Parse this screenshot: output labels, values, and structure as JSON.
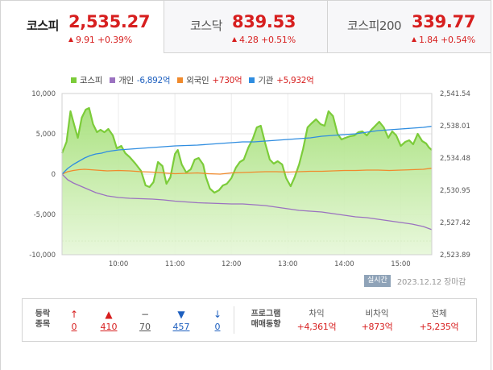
{
  "tabs": [
    {
      "name": "코스피",
      "value": "2,535.27",
      "change": "9.91 +0.39%"
    },
    {
      "name": "코스닥",
      "value": "839.53",
      "change": "4.28 +0.51%"
    },
    {
      "name": "코스피200",
      "value": "339.77",
      "change": "1.84 +0.54%"
    }
  ],
  "legend": [
    {
      "name": "코스피",
      "value": "",
      "color": "#7ccc3a",
      "value_color": "#444"
    },
    {
      "name": "개인",
      "value": "-6,892억",
      "color": "#9b72c0",
      "value_color": "#1d5fbf"
    },
    {
      "name": "외국인",
      "value": "+730억",
      "color": "#f08a2c",
      "value_color": "#d71f1f"
    },
    {
      "name": "기관",
      "value": "+5,932억",
      "color": "#2f8de0",
      "value_color": "#d71f1f"
    }
  ],
  "chart_data": {
    "type": "line",
    "x_ticks": [
      "10:00",
      "11:00",
      "12:00",
      "13:00",
      "14:00",
      "15:00"
    ],
    "y_left_ticks": [
      "10,000",
      "5,000",
      "0",
      "-5,000",
      "-10,000"
    ],
    "y_right_ticks": [
      "2,541.54",
      "2,538.01",
      "2,534.48",
      "2,530.95",
      "2,527.42",
      "2,523.89"
    ],
    "y_left_range": [
      -10000,
      10000
    ],
    "y_right_range": [
      2523.89,
      2541.54
    ],
    "grid": true,
    "x_range": [
      9.0,
      15.55
    ],
    "reference_line": -8300,
    "series": [
      {
        "name": "코스피",
        "axis": "left",
        "type": "area",
        "color": "#7ccc3a",
        "x": [
          9.0,
          9.08,
          9.15,
          9.22,
          9.28,
          9.35,
          9.42,
          9.48,
          9.55,
          9.62,
          9.68,
          9.75,
          9.82,
          9.9,
          9.97,
          10.05,
          10.12,
          10.2,
          10.3,
          10.4,
          10.48,
          10.55,
          10.62,
          10.7,
          10.78,
          10.85,
          10.92,
          11.0,
          11.05,
          11.12,
          11.2,
          11.28,
          11.35,
          11.42,
          11.5,
          11.55,
          11.62,
          11.7,
          11.78,
          11.85,
          11.92,
          12.0,
          12.08,
          12.15,
          12.22,
          12.3,
          12.38,
          12.45,
          12.52,
          12.6,
          12.68,
          12.75,
          12.82,
          12.9,
          12.97,
          13.05,
          13.12,
          13.2,
          13.27,
          13.35,
          13.42,
          13.5,
          13.58,
          13.65,
          13.72,
          13.8,
          13.88,
          13.95,
          14.02,
          14.1,
          14.18,
          14.25,
          14.32,
          14.4,
          14.48,
          14.55,
          14.62,
          14.7,
          14.78,
          14.85,
          14.92,
          15.0,
          15.08,
          15.15,
          15.22,
          15.3,
          15.38,
          15.45,
          15.5,
          15.55
        ],
        "y": [
          2600,
          4000,
          7800,
          6000,
          4500,
          7000,
          8000,
          8200,
          6200,
          5200,
          5500,
          5200,
          5600,
          4800,
          3200,
          3500,
          2600,
          2100,
          1300,
          400,
          -1400,
          -1600,
          -1000,
          1500,
          1000,
          -1200,
          -400,
          2500,
          3000,
          1200,
          200,
          600,
          1800,
          2000,
          1200,
          -400,
          -1800,
          -2300,
          -2000,
          -1400,
          -1200,
          -500,
          800,
          1500,
          1800,
          3300,
          4400,
          5800,
          6000,
          3800,
          1800,
          1300,
          1600,
          1200,
          -500,
          -1500,
          -400,
          1200,
          3100,
          5800,
          6300,
          6800,
          6200,
          6000,
          7800,
          7200,
          5000,
          4300,
          4500,
          4700,
          4800,
          5200,
          5300,
          4800,
          5500,
          6000,
          6500,
          5800,
          4500,
          5300,
          4800,
          3500,
          4000,
          4200,
          3700,
          5000,
          4100,
          3800,
          3300,
          3000
        ]
      },
      {
        "name": "개인",
        "axis": "left",
        "type": "line",
        "color": "#9b72c0",
        "x": [
          9.0,
          9.1,
          9.2,
          9.3,
          9.4,
          9.5,
          9.6,
          9.7,
          9.8,
          9.9,
          10.0,
          10.2,
          10.4,
          10.6,
          10.8,
          11.0,
          11.2,
          11.4,
          11.6,
          11.8,
          12.0,
          12.2,
          12.4,
          12.6,
          12.8,
          13.0,
          13.2,
          13.4,
          13.6,
          13.8,
          14.0,
          14.2,
          14.4,
          14.6,
          14.8,
          15.0,
          15.2,
          15.4,
          15.55
        ],
        "y": [
          0,
          -700,
          -1100,
          -1400,
          -1700,
          -2000,
          -2300,
          -2500,
          -2700,
          -2800,
          -2900,
          -3000,
          -3050,
          -3100,
          -3200,
          -3350,
          -3450,
          -3550,
          -3600,
          -3650,
          -3700,
          -3700,
          -3800,
          -3900,
          -4100,
          -4300,
          -4500,
          -4600,
          -4700,
          -4900,
          -5100,
          -5300,
          -5400,
          -5600,
          -5800,
          -6000,
          -6200,
          -6500,
          -6892
        ]
      },
      {
        "name": "외국인",
        "axis": "left",
        "type": "line",
        "color": "#f08a2c",
        "x": [
          9.0,
          9.1,
          9.2,
          9.3,
          9.4,
          9.6,
          9.8,
          10.0,
          10.2,
          10.4,
          10.6,
          10.8,
          11.0,
          11.2,
          11.4,
          11.6,
          11.8,
          12.0,
          12.2,
          12.4,
          12.6,
          12.8,
          13.0,
          13.2,
          13.4,
          13.6,
          13.8,
          14.0,
          14.2,
          14.4,
          14.6,
          14.8,
          15.0,
          15.2,
          15.4,
          15.55
        ],
        "y": [
          0,
          300,
          450,
          550,
          600,
          500,
          400,
          450,
          400,
          300,
          250,
          150,
          50,
          100,
          150,
          50,
          0,
          150,
          200,
          250,
          300,
          300,
          250,
          300,
          350,
          350,
          400,
          450,
          450,
          500,
          500,
          450,
          500,
          550,
          600,
          730
        ]
      },
      {
        "name": "기관",
        "axis": "left",
        "type": "line",
        "color": "#2f8de0",
        "x": [
          9.0,
          9.1,
          9.2,
          9.3,
          9.4,
          9.5,
          9.6,
          9.7,
          9.8,
          9.9,
          10.0,
          10.2,
          10.4,
          10.6,
          10.8,
          11.0,
          11.2,
          11.4,
          11.6,
          11.8,
          12.0,
          12.2,
          12.4,
          12.6,
          12.8,
          13.0,
          13.2,
          13.4,
          13.6,
          13.8,
          14.0,
          14.2,
          14.4,
          14.6,
          14.8,
          15.0,
          15.2,
          15.4,
          15.55
        ],
        "y": [
          0,
          700,
          1200,
          1600,
          2000,
          2300,
          2500,
          2600,
          2800,
          2900,
          3000,
          3100,
          3200,
          3300,
          3400,
          3500,
          3550,
          3600,
          3700,
          3800,
          3900,
          4000,
          4000,
          4100,
          4200,
          4300,
          4400,
          4500,
          4700,
          4800,
          4900,
          5000,
          5200,
          5400,
          5500,
          5600,
          5700,
          5800,
          5932
        ]
      }
    ]
  },
  "realtime_label": "실시간",
  "timestamp": "2023.12.12 장마감",
  "summary": {
    "updown_label_1": "등락",
    "updown_label_2": "종목",
    "items": [
      {
        "icon": "↑",
        "value": "0",
        "color": "#d71f1f"
      },
      {
        "icon": "▲",
        "value": "410",
        "color": "#d71f1f"
      },
      {
        "icon": "−",
        "value": "70",
        "color": "#555"
      },
      {
        "icon": "▼",
        "value": "457",
        "color": "#1d5fbf"
      },
      {
        "icon": "↓",
        "value": "0",
        "color": "#1d5fbf"
      }
    ],
    "program_label_1": "프로그램",
    "program_label_2": "매매동향",
    "program": [
      {
        "head": "차익",
        "value": "+4,361억"
      },
      {
        "head": "비차익",
        "value": "+873억"
      },
      {
        "head": "전체",
        "value": "+5,235억"
      }
    ]
  }
}
